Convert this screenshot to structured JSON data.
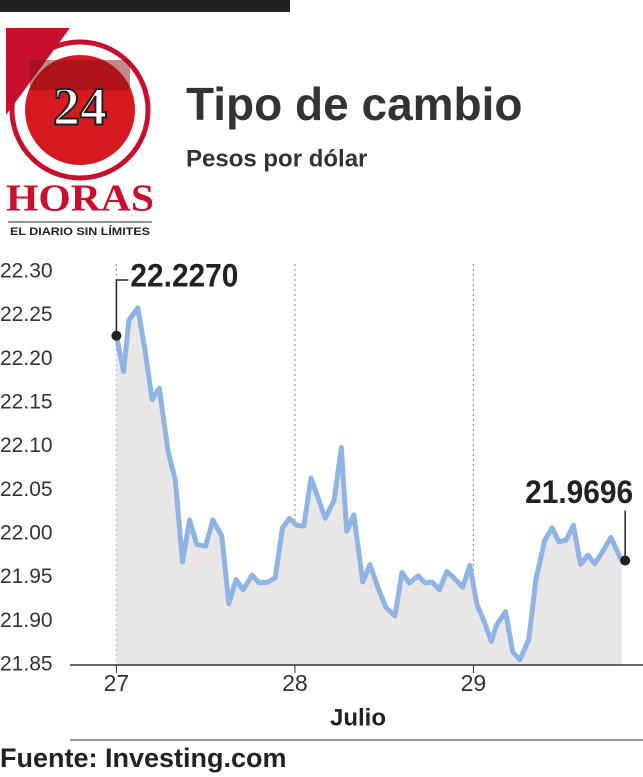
{
  "logo": {
    "number": "24",
    "name": "HORAS",
    "tagline": "EL DIARIO SIN LÍMITES"
  },
  "chart_data": {
    "type": "line",
    "title": "Tipo de cambio",
    "subtitle": "Pesos por dólar",
    "x_label": "Julio",
    "source": "Fuente: Investing.com",
    "x": [
      27.0,
      27.04,
      27.07,
      27.12,
      27.16,
      27.2,
      27.24,
      27.29,
      27.33,
      27.37,
      27.41,
      27.45,
      27.5,
      27.54,
      27.59,
      27.63,
      27.67,
      27.71,
      27.76,
      27.8,
      27.85,
      27.89,
      27.93,
      27.97,
      28.01,
      28.05,
      28.09,
      28.13,
      28.17,
      28.22,
      28.26,
      28.29,
      28.33,
      28.38,
      28.42,
      28.47,
      28.51,
      28.56,
      28.6,
      28.64,
      28.69,
      28.73,
      28.77,
      28.81,
      28.85,
      28.89,
      28.94,
      28.98,
      29.02,
      29.06,
      29.1,
      29.13,
      29.18,
      29.22,
      29.26,
      29.31,
      29.35,
      29.4,
      29.44,
      29.48,
      29.52,
      29.56,
      29.6,
      29.64,
      29.68,
      29.73,
      29.77,
      29.83
    ],
    "series": [
      {
        "color": "#8fb4e3",
        "values": [
          22.227,
          22.186,
          22.245,
          22.259,
          22.211,
          22.154,
          22.167,
          22.094,
          22.062,
          21.968,
          22.016,
          21.988,
          21.986,
          22.016,
          21.998,
          21.92,
          21.948,
          21.936,
          21.953,
          21.944,
          21.945,
          21.95,
          22.007,
          22.018,
          22.01,
          22.009,
          22.064,
          22.041,
          22.018,
          22.039,
          22.099,
          22.003,
          22.022,
          21.945,
          21.965,
          21.936,
          21.916,
          21.906,
          21.956,
          21.944,
          21.952,
          21.944,
          21.945,
          21.936,
          21.957,
          21.95,
          21.939,
          21.964,
          21.919,
          21.9,
          21.877,
          21.896,
          21.911,
          21.865,
          21.856,
          21.879,
          21.948,
          21.993,
          22.007,
          21.991,
          21.993,
          22.01,
          21.965,
          21.976,
          21.966,
          21.982,
          21.996,
          21.9696
        ]
      }
    ],
    "area_color": "#e8e7e6",
    "annotations": [
      {
        "text": "22.2270",
        "x": 27.0,
        "y": 22.227
      },
      {
        "text": "21.9696",
        "x": 29.85,
        "y": 21.9696
      }
    ],
    "xlim": [
      26.74,
      29.95
    ],
    "xticks": [
      27,
      28,
      29
    ],
    "ylim": [
      21.85,
      22.3
    ],
    "yticks": [
      {
        "value": 22.3,
        "label": "22.30"
      },
      22.25,
      {
        "value": 22.2,
        "label": "22.20"
      },
      22.15,
      {
        "value": 22.1,
        "label": "22.10"
      },
      22.05,
      {
        "value": 22.0,
        "label": "22.00"
      },
      21.95,
      {
        "value": 21.9,
        "label": "21.90"
      },
      21.85
    ],
    "grid": true
  }
}
